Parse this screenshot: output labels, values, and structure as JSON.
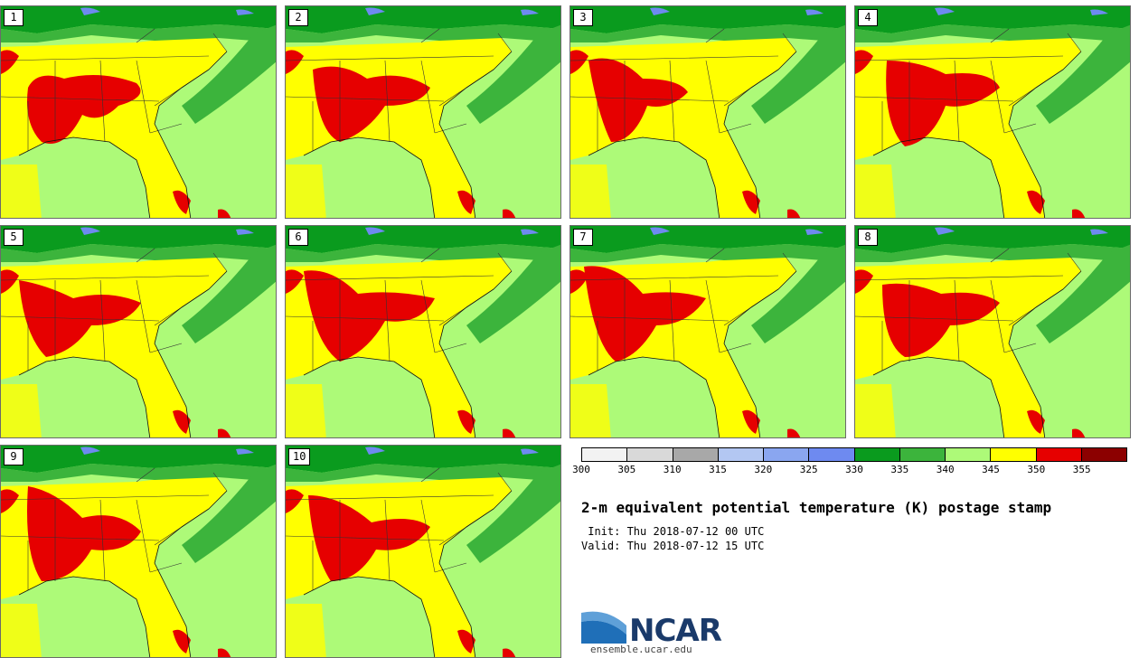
{
  "title": "2-m equivalent potential temperature (K) postage stamp",
  "init": " Init: Thu 2018-07-12 00 UTC",
  "valid": "Valid: Thu 2018-07-12 15 UTC",
  "logo_text": "NCAR",
  "url": "ensemble.ucar.edu",
  "members": [
    "1",
    "2",
    "3",
    "4",
    "5",
    "6",
    "7",
    "8",
    "9",
    "10"
  ],
  "colorbar": {
    "colors": [
      "#f2f2f2",
      "#d9d9d9",
      "#a8a8a8",
      "#b3c7f2",
      "#8aa6f0",
      "#6e8af0",
      "#0a9b1e",
      "#3cb43c",
      "#adfa78",
      "#ffff00",
      "#e60000",
      "#8c0000"
    ],
    "ticks": [
      "300",
      "305",
      "310",
      "315",
      "320",
      "325",
      "330",
      "335",
      "340",
      "345",
      "350",
      "355"
    ]
  },
  "map_colors": {
    "tropical": "#adfa78",
    "moist": "#ffff00",
    "hot": "#e60000",
    "cool": "#3cb43c",
    "cold": "#0a9b1e",
    "snow": "#6e8af0",
    "border": "#333333"
  }
}
